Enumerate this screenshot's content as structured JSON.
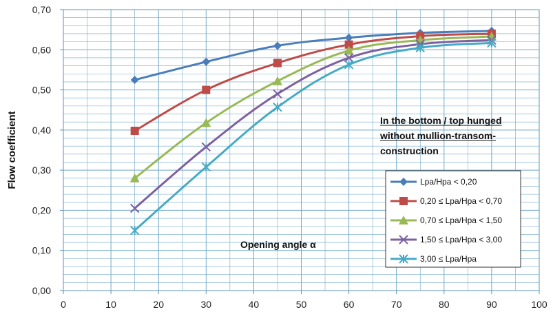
{
  "chart_data": {
    "type": "line",
    "title": "",
    "xlabel": "Opening angle α",
    "ylabel": "Flow coefficient",
    "xlim": [
      0,
      100
    ],
    "ylim": [
      0,
      0.7
    ],
    "x_ticks": [
      "0",
      "10",
      "20",
      "30",
      "40",
      "50",
      "60",
      "70",
      "80",
      "90",
      "100"
    ],
    "y_ticks": [
      "0,00",
      "0,10",
      "0,20",
      "0,30",
      "0,40",
      "0,50",
      "0,60",
      "0,70"
    ],
    "grid": true,
    "legend_position": "right",
    "annotation": [
      "In the bottom / top hunged",
      "without mullion-transom-",
      "construction"
    ],
    "x": [
      15,
      30,
      45,
      60,
      75,
      90
    ],
    "series": [
      {
        "name": "Lpa/Hpa < 0,20",
        "color": "#4a7ebb",
        "marker": "diamond",
        "values": [
          0.525,
          0.57,
          0.61,
          0.63,
          0.642,
          0.647
        ]
      },
      {
        "name": "0,20 ≤ Lpa/Hpa < 0,70",
        "color": "#be4b48",
        "marker": "square",
        "values": [
          0.398,
          0.5,
          0.567,
          0.613,
          0.634,
          0.64
        ]
      },
      {
        "name": "0,70 ≤ Lpa/Hpa < 1,50",
        "color": "#98b954",
        "marker": "triangle",
        "values": [
          0.28,
          0.418,
          0.522,
          0.598,
          0.624,
          0.633
        ]
      },
      {
        "name": "1,50 ≤ Lpa/Hpa < 3,00",
        "color": "#7d60a0",
        "marker": "x",
        "values": [
          0.205,
          0.358,
          0.49,
          0.58,
          0.614,
          0.624
        ]
      },
      {
        "name": "3,00 ≤ Lpa/Hpa",
        "color": "#46aac5",
        "marker": "star",
        "values": [
          0.15,
          0.308,
          0.457,
          0.563,
          0.605,
          0.617
        ]
      }
    ]
  }
}
